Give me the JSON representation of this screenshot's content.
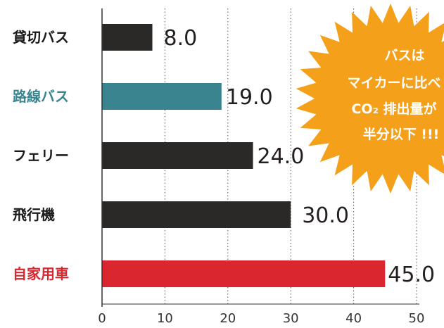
{
  "chart_data": {
    "type": "bar",
    "orientation": "horizontal",
    "categories": [
      "貸切バス",
      "路線バス",
      "フェリー",
      "飛行機",
      "自家用車"
    ],
    "values": [
      8.0,
      19.0,
      24.0,
      30.0,
      45.0
    ],
    "value_labels": [
      "8.0",
      "19.0",
      "24.0",
      "30.0",
      "45.0"
    ],
    "bar_colors": [
      "#2b2828",
      "#3a8490",
      "#2b2828",
      "#2b2828",
      "#d9262f"
    ],
    "label_colors": [
      "#1a1a1a",
      "#3a8490",
      "#1a1a1a",
      "#1a1a1a",
      "#d9262f"
    ],
    "xlim": [
      0,
      50
    ],
    "xticks": [
      "0",
      "10",
      "20",
      "30",
      "40",
      "50"
    ],
    "grid": "vertical dotted",
    "title": "",
    "xlabel": "",
    "ylabel": ""
  },
  "callout": {
    "lines": [
      "バスは",
      "マイカーに比べ",
      "CO₂ 排出量が",
      "半分以下 !!!"
    ],
    "color": "#f5a01a"
  }
}
